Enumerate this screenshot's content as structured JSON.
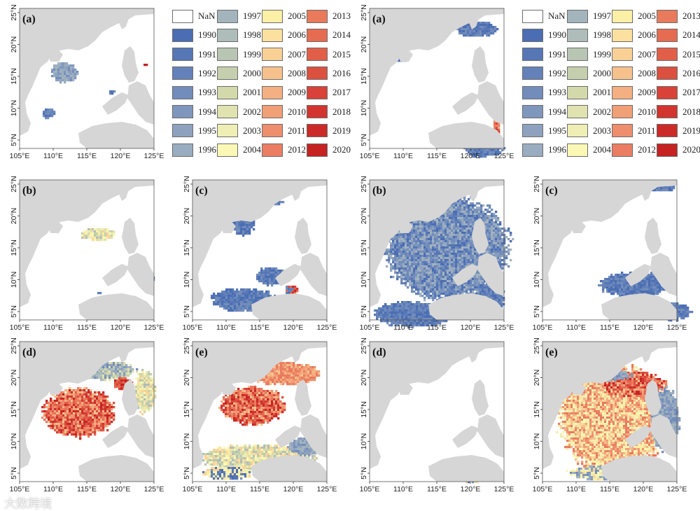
{
  "figure": {
    "legend_nan_color": "#ffffff",
    "land_color": "#d6d6d6",
    "watermark": "大数跨境",
    "x_ticks": [
      "105°E",
      "110°E",
      "115°E",
      "120°E",
      "125°E"
    ],
    "y_ticks": [
      "5°N",
      "10°N",
      "15°N",
      "20°N",
      "25°N"
    ]
  },
  "legend": {
    "items": [
      {
        "label": "NaN",
        "color": "#ffffff"
      },
      {
        "label": "1990",
        "color": "#4a6db3"
      },
      {
        "label": "1991",
        "color": "#5676b6"
      },
      {
        "label": "1992",
        "color": "#6482b9"
      },
      {
        "label": "1993",
        "color": "#728dbb"
      },
      {
        "label": "1994",
        "color": "#8097bd"
      },
      {
        "label": "1995",
        "color": "#8ea2bf"
      },
      {
        "label": "1996",
        "color": "#9aacc0"
      },
      {
        "label": "1997",
        "color": "#a3b4bd"
      },
      {
        "label": "1998",
        "color": "#aebdba"
      },
      {
        "label": "1999",
        "color": "#b9c5b3"
      },
      {
        "label": "2000",
        "color": "#c5cfae"
      },
      {
        "label": "2001",
        "color": "#d3d9ab"
      },
      {
        "label": "2002",
        "color": "#e0e2b0"
      },
      {
        "label": "2003",
        "color": "#eeeeb5"
      },
      {
        "label": "2004",
        "color": "#fbf8b6"
      },
      {
        "label": "2005",
        "color": "#fcefa6"
      },
      {
        "label": "2006",
        "color": "#fbe0a0"
      },
      {
        "label": "2007",
        "color": "#f9d197"
      },
      {
        "label": "2008",
        "color": "#f7c18d"
      },
      {
        "label": "2009",
        "color": "#f4b082"
      },
      {
        "label": "2010",
        "color": "#f19f77"
      },
      {
        "label": "2011",
        "color": "#ee8e6d"
      },
      {
        "label": "2012",
        "color": "#ea7d62"
      },
      {
        "label": "2013",
        "color": "#e97a5c"
      },
      {
        "label": "2014",
        "color": "#e56c51"
      },
      {
        "label": "2015",
        "color": "#e15f48"
      },
      {
        "label": "2016",
        "color": "#dc5040"
      },
      {
        "label": "2017",
        "color": "#d84238"
      },
      {
        "label": "2018",
        "color": "#d2352f"
      },
      {
        "label": "2019",
        "color": "#cc2a28"
      },
      {
        "label": "2020",
        "color": "#c52222"
      }
    ]
  },
  "chart_data": [
    {
      "type": "heatmap",
      "label": "(a)",
      "xlim": [
        105,
        125
      ],
      "ylim": [
        3,
        25
      ],
      "note": "sparse blue patches 1990-1996 near Gulf of Tonkin and Philippines"
    },
    {
      "type": "heatmap",
      "label": "(b)",
      "xlim": [
        105,
        125
      ],
      "ylim": [
        3,
        25
      ],
      "note": "sparse yellow patch near 16°N, blue spots"
    },
    {
      "type": "heatmap",
      "label": "(c)",
      "xlim": [
        105,
        125
      ],
      "ylim": [
        3,
        25
      ],
      "note": "blue patches 1990-1993 in central and southern SCS"
    },
    {
      "type": "heatmap",
      "label": "(d)",
      "xlim": [
        105,
        125
      ],
      "ylim": [
        3,
        25
      ],
      "note": "red 2016-2020 central SCS, green/yellow margins"
    },
    {
      "type": "heatmap",
      "label": "(e)",
      "xlim": [
        105,
        125
      ],
      "ylim": [
        3,
        25
      ],
      "note": "orange-red northern band, yellow southern band"
    },
    {
      "type": "heatmap",
      "label": "(a)",
      "xlim": [
        105,
        125
      ],
      "ylim": [
        3,
        25
      ],
      "note": "blue patches near Taiwan and southeast"
    },
    {
      "type": "heatmap",
      "label": "(b)",
      "xlim": [
        105,
        125
      ],
      "ylim": [
        3,
        25
      ],
      "note": "wide blue coverage 1990-1992"
    },
    {
      "type": "heatmap",
      "label": "(c)",
      "xlim": [
        105,
        125
      ],
      "ylim": [
        3,
        25
      ],
      "note": "blue patches south and near Philippines"
    },
    {
      "type": "heatmap",
      "label": "(d)",
      "xlim": [
        105,
        125
      ],
      "ylim": [
        3,
        25
      ],
      "note": "small yellow strip southeast"
    },
    {
      "type": "heatmap",
      "label": "(e)",
      "xlim": [
        105,
        125
      ],
      "ylim": [
        3,
        25
      ],
      "note": "broad yellow-orange coverage, blue near Philippines"
    }
  ]
}
